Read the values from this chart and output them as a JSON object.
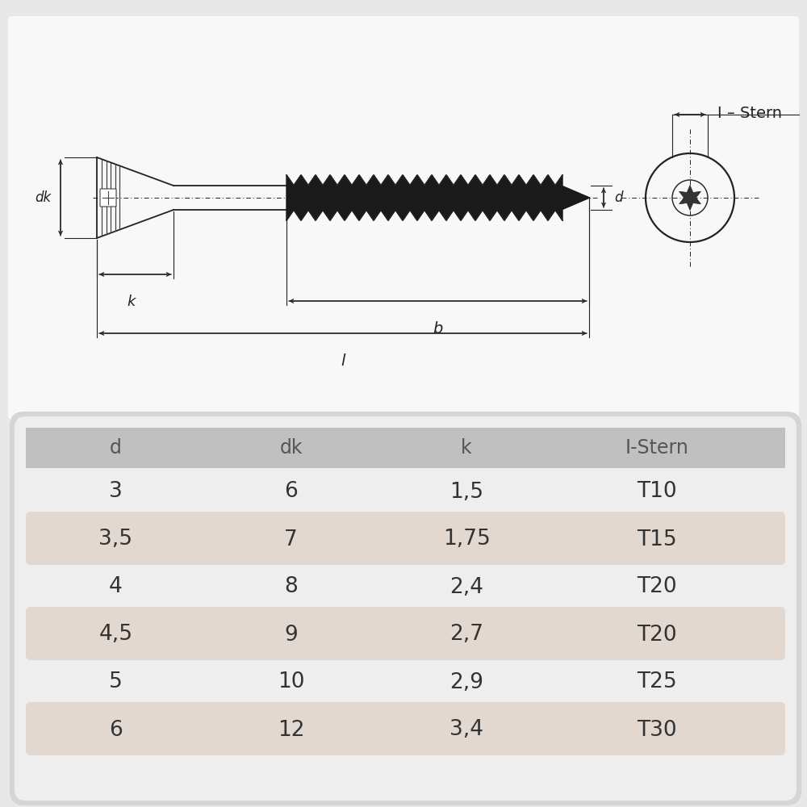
{
  "bg_color": "#e8e8e8",
  "drawing_bg": "#f5f5f5",
  "table_bg": "#d8d8d8",
  "table_inner_bg": "#efefef",
  "row_highlight_bg": "#e8dfd8",
  "row_normal_bg": "#f5f0ec",
  "text_color": "#333333",
  "line_color": "#222222",
  "header_cols": [
    "d",
    "dk",
    "k",
    "I-Stern"
  ],
  "table_data": [
    [
      "3",
      "6",
      "1,5",
      "T10"
    ],
    [
      "3,5",
      "7",
      "1,75",
      "T15"
    ],
    [
      "4",
      "8",
      "2,4",
      "T20"
    ],
    [
      "4,5",
      "9",
      "2,7",
      "T20"
    ],
    [
      "5",
      "10",
      "2,9",
      "T25"
    ],
    [
      "6",
      "12",
      "3,4",
      "T30"
    ]
  ]
}
